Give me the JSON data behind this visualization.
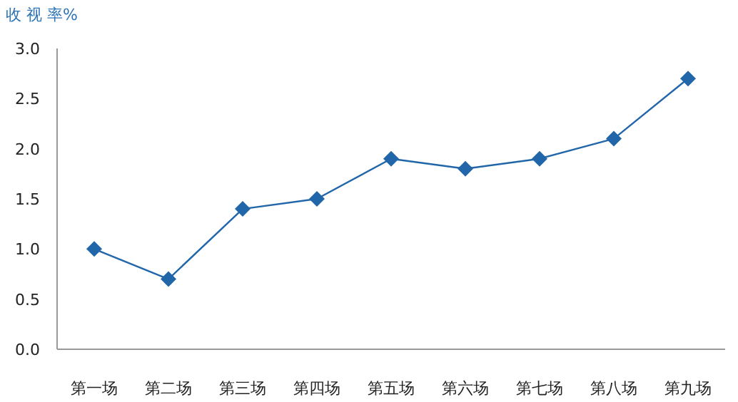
{
  "chart_data": {
    "type": "line",
    "ylabel": "收 视 率%",
    "categories": [
      "第一场",
      "第二场",
      "第三场",
      "第四场",
      "第五场",
      "第六场",
      "第七场",
      "第八场",
      "第九场"
    ],
    "series": [
      {
        "color": "#2266aa",
        "values": [
          1.0,
          0.7,
          1.4,
          1.5,
          1.9,
          1.8,
          1.9,
          2.1,
          2.7
        ]
      }
    ],
    "ylim": [
      0,
      3
    ],
    "yticks": [
      {
        "value": 0,
        "label": "0.0"
      },
      {
        "value": 0.5,
        "label": "0.5"
      },
      {
        "value": 1,
        "label": "1.0"
      },
      {
        "value": 1.5,
        "label": "1.5"
      },
      {
        "value": 2,
        "label": "2.0"
      },
      {
        "value": 2.5,
        "label": "2.5"
      },
      {
        "value": 3,
        "label": "3.0"
      }
    ],
    "grid": false,
    "marker": "diamond",
    "line_style": "solid"
  }
}
